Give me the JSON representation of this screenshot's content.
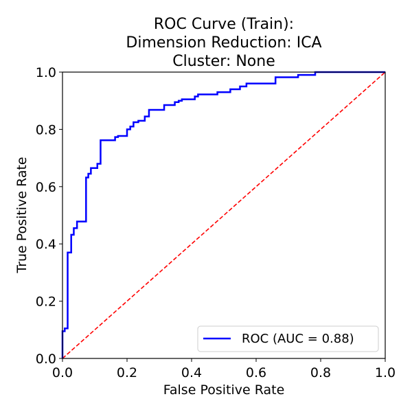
{
  "chart_data": {
    "type": "line",
    "title_lines": [
      "ROC Curve (Train):",
      "Dimension Reduction: ICA",
      "Cluster: None"
    ],
    "xlabel": "False Positive Rate",
    "ylabel": "True Positive Rate",
    "xlim": [
      0.0,
      1.0
    ],
    "ylim": [
      0.0,
      1.0
    ],
    "xticks": [
      "0.0",
      "0.2",
      "0.4",
      "0.6",
      "0.8",
      "1.0"
    ],
    "yticks": [
      "0.0",
      "0.2",
      "0.4",
      "0.6",
      "0.8",
      "1.0"
    ],
    "grid": false,
    "legend_position": "lower-right",
    "series": [
      {
        "name": "ROC (AUC = 0.88)",
        "color": "#0000ff",
        "style": "solid",
        "points": [
          [
            0.0,
            0.0
          ],
          [
            0.0,
            0.095
          ],
          [
            0.007,
            0.095
          ],
          [
            0.007,
            0.105
          ],
          [
            0.016,
            0.105
          ],
          [
            0.016,
            0.37
          ],
          [
            0.027,
            0.37
          ],
          [
            0.027,
            0.432
          ],
          [
            0.035,
            0.432
          ],
          [
            0.035,
            0.455
          ],
          [
            0.045,
            0.455
          ],
          [
            0.045,
            0.478
          ],
          [
            0.073,
            0.478
          ],
          [
            0.073,
            0.632
          ],
          [
            0.08,
            0.632
          ],
          [
            0.08,
            0.645
          ],
          [
            0.088,
            0.645
          ],
          [
            0.088,
            0.665
          ],
          [
            0.108,
            0.665
          ],
          [
            0.108,
            0.68
          ],
          [
            0.118,
            0.68
          ],
          [
            0.118,
            0.762
          ],
          [
            0.163,
            0.762
          ],
          [
            0.163,
            0.773
          ],
          [
            0.172,
            0.773
          ],
          [
            0.172,
            0.777
          ],
          [
            0.2,
            0.777
          ],
          [
            0.2,
            0.8
          ],
          [
            0.21,
            0.8
          ],
          [
            0.21,
            0.81
          ],
          [
            0.22,
            0.81
          ],
          [
            0.22,
            0.825
          ],
          [
            0.235,
            0.825
          ],
          [
            0.235,
            0.83
          ],
          [
            0.255,
            0.83
          ],
          [
            0.255,
            0.845
          ],
          [
            0.268,
            0.845
          ],
          [
            0.268,
            0.868
          ],
          [
            0.315,
            0.868
          ],
          [
            0.315,
            0.885
          ],
          [
            0.348,
            0.885
          ],
          [
            0.348,
            0.895
          ],
          [
            0.36,
            0.895
          ],
          [
            0.36,
            0.9
          ],
          [
            0.37,
            0.9
          ],
          [
            0.37,
            0.905
          ],
          [
            0.41,
            0.905
          ],
          [
            0.41,
            0.915
          ],
          [
            0.42,
            0.915
          ],
          [
            0.42,
            0.922
          ],
          [
            0.48,
            0.922
          ],
          [
            0.48,
            0.93
          ],
          [
            0.52,
            0.93
          ],
          [
            0.52,
            0.94
          ],
          [
            0.55,
            0.94
          ],
          [
            0.55,
            0.95
          ],
          [
            0.57,
            0.95
          ],
          [
            0.57,
            0.96
          ],
          [
            0.66,
            0.96
          ],
          [
            0.66,
            0.982
          ],
          [
            0.73,
            0.982
          ],
          [
            0.73,
            0.99
          ],
          [
            0.783,
            0.99
          ],
          [
            0.783,
            1.0
          ],
          [
            1.0,
            1.0
          ]
        ]
      },
      {
        "name": "",
        "color": "#ff0000",
        "style": "dashed",
        "points": [
          [
            0.0,
            0.0
          ],
          [
            1.0,
            1.0
          ]
        ]
      }
    ]
  }
}
